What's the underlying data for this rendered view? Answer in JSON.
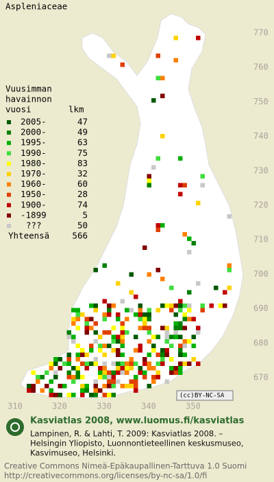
{
  "title": "Aspleniaceae",
  "legend": {
    "heading": [
      "Vuusimman",
      "havainnon",
      "vuosi"
    ],
    "count_heading": "lkm",
    "items": [
      {
        "label": "2005-",
        "count": 47,
        "color": "#005800"
      },
      {
        "label": "2000-",
        "count": 49,
        "color": "#008000"
      },
      {
        "label": "1995-",
        "count": 63,
        "color": "#00b000"
      },
      {
        "label": "1990-",
        "count": 75,
        "color": "#40dc40"
      },
      {
        "label": "1980-",
        "count": 83,
        "color": "#ffff00"
      },
      {
        "label": "1970-",
        "count": 32,
        "color": "#ffd200"
      },
      {
        "label": "1960-",
        "count": 60,
        "color": "#ff8000"
      },
      {
        "label": "1950-",
        "count": 28,
        "color": "#e04000"
      },
      {
        "label": "1900-",
        "count": 74,
        "color": "#c00000"
      },
      {
        "label": "-1899",
        "count": 5,
        "color": "#800000"
      },
      {
        "label": "???",
        "count": 50,
        "color": "#c8c8c8"
      }
    ],
    "total": {
      "label": "Yhteensä",
      "count": 566
    }
  },
  "axes": {
    "x": [
      310,
      320,
      330,
      340,
      350
    ],
    "y": [
      770,
      760,
      750,
      740,
      730,
      720,
      710,
      700,
      690,
      680,
      670
    ]
  },
  "license_badge": "BY-NC-SA",
  "footer": {
    "brand": "Kasviatlas 2008, www.luomus.fi/kasviatlas",
    "citation": [
      "Lampinen, R. & Lahti, T. 2009: Kasviatlas 2008. –",
      "Helsingin Yliopisto, Luonnontieteellinen keskusmuseo,",
      "Kasvimuseo, Helsinki."
    ],
    "license": [
      "Creative Commons Nimeä-Epäkaupallinen-Tarttuva 1.0 Suomi",
      "http://creativecommons.org/licenses/by-nc-sa/1.0/fi"
    ]
  }
}
